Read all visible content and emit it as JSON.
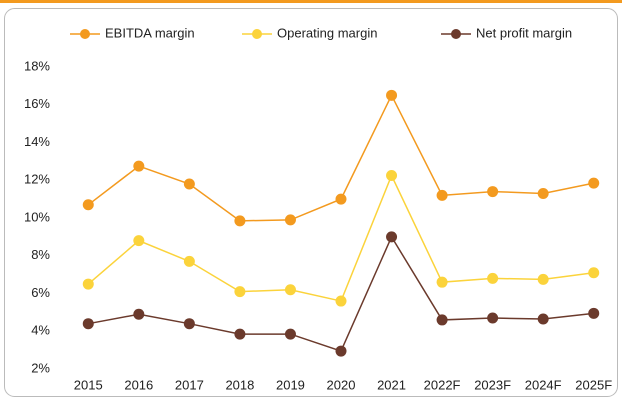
{
  "chart_data": {
    "type": "line",
    "categories": [
      "2015",
      "2016",
      "2017",
      "2018",
      "2019",
      "2020",
      "2021",
      "2022F",
      "2023F",
      "2024F",
      "2025F"
    ],
    "series": [
      {
        "name": "EBITDA margin",
        "color": "#f39a1f",
        "values": [
          10.7,
          12.75,
          11.8,
          9.85,
          9.9,
          11.0,
          16.5,
          11.2,
          11.4,
          11.3,
          11.85
        ]
      },
      {
        "name": "Operating margin",
        "color": "#fbd33b",
        "values": [
          6.5,
          8.8,
          7.7,
          6.1,
          6.2,
          5.6,
          12.25,
          6.6,
          6.8,
          6.75,
          7.1
        ]
      },
      {
        "name": "Net profit margin",
        "color": "#6b3a2c",
        "values": [
          4.4,
          4.9,
          4.4,
          3.85,
          3.85,
          2.95,
          9.0,
          4.6,
          4.7,
          4.65,
          4.95
        ]
      }
    ],
    "ylim": [
      2,
      18
    ],
    "yticks": [
      {
        "value": 2,
        "label": "2%"
      },
      {
        "value": 4,
        "label": "4%"
      },
      {
        "value": 6,
        "label": "6%"
      },
      {
        "value": 8,
        "label": "8%"
      },
      {
        "value": 10,
        "label": "10%"
      },
      {
        "value": 12,
        "label": "12%"
      },
      {
        "value": 14,
        "label": "14%"
      },
      {
        "value": 16,
        "label": "16%"
      },
      {
        "value": 18,
        "label": "18%"
      }
    ],
    "grid": false
  }
}
